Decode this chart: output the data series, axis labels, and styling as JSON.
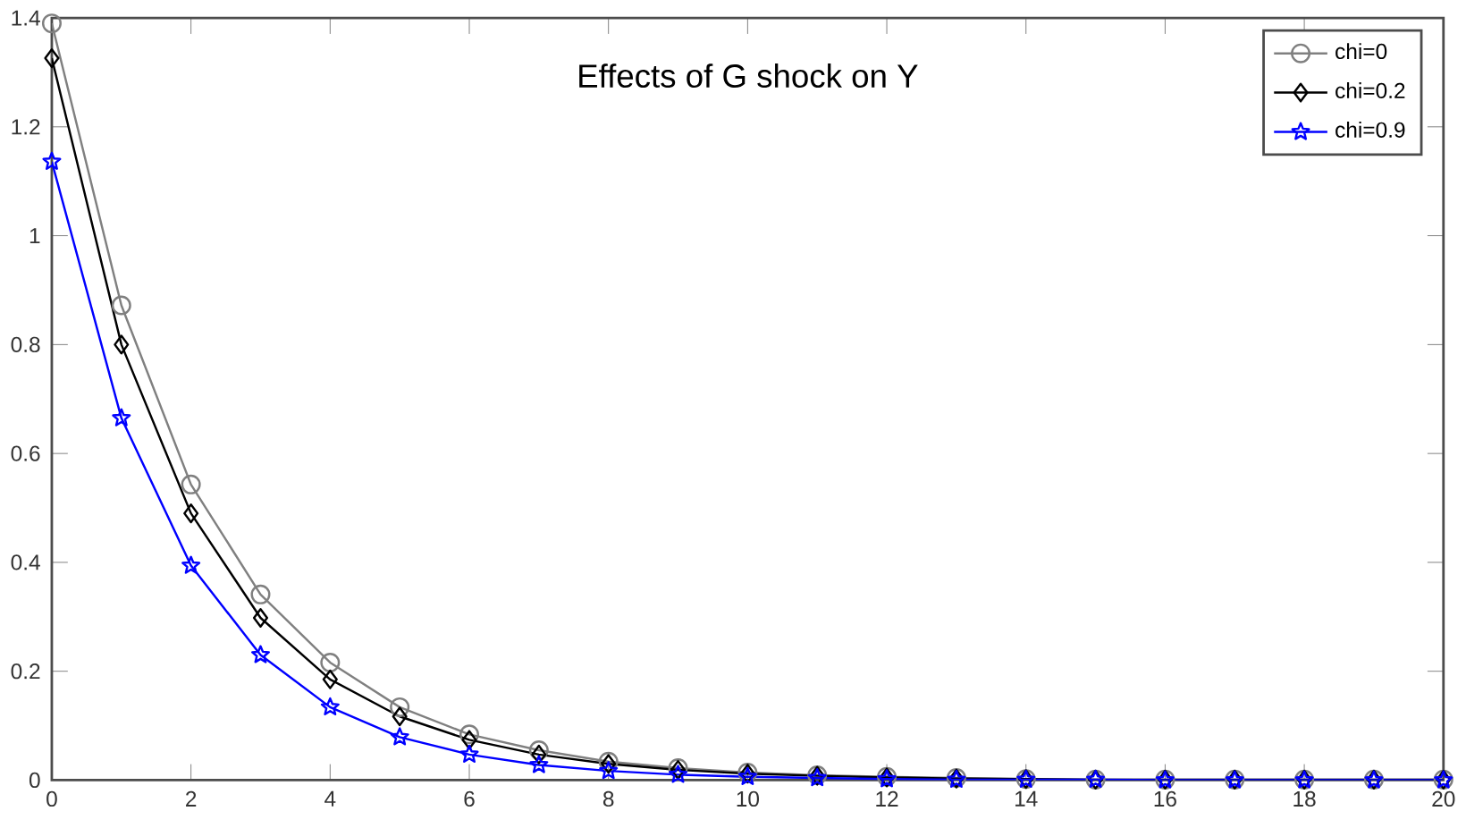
{
  "chart_data": {
    "type": "line",
    "title": "Effects of G shock on Y",
    "x": [
      0,
      1,
      2,
      3,
      4,
      5,
      6,
      7,
      8,
      9,
      10,
      11,
      12,
      13,
      14,
      15,
      16,
      17,
      18,
      19,
      20
    ],
    "series": [
      {
        "name": "chi=0",
        "color": "#808080",
        "marker": "circle",
        "values": [
          1.39,
          0.872,
          0.543,
          0.341,
          0.216,
          0.134,
          0.084,
          0.055,
          0.034,
          0.022,
          0.014,
          0.009,
          0.006,
          0.004,
          0.002,
          0.001,
          0.001,
          0.001,
          0.001,
          0.001,
          0.001
        ]
      },
      {
        "name": "chi=0.2",
        "color": "#000000",
        "marker": "diamond",
        "values": [
          1.326,
          0.8,
          0.49,
          0.298,
          0.185,
          0.117,
          0.074,
          0.047,
          0.03,
          0.019,
          0.012,
          0.008,
          0.005,
          0.003,
          0.002,
          0.001,
          0.001,
          0.001,
          0.001,
          0.001,
          0.001
        ]
      },
      {
        "name": "chi=0.9",
        "color": "#0000ff",
        "marker": "star",
        "values": [
          1.136,
          0.665,
          0.394,
          0.23,
          0.134,
          0.079,
          0.047,
          0.028,
          0.017,
          0.01,
          0.006,
          0.004,
          0.002,
          0.001,
          0.001,
          0.001,
          0,
          0,
          0,
          0,
          0
        ]
      }
    ],
    "xlim": [
      0,
      20
    ],
    "xticks": [
      0,
      2,
      4,
      6,
      8,
      10,
      12,
      14,
      16,
      18,
      20
    ],
    "ylim": [
      0,
      1.4
    ],
    "yticks": [
      0,
      0.2,
      0.4,
      0.6,
      0.8,
      1,
      1.2,
      1.4
    ],
    "legend": "top right",
    "line_style": "solid",
    "grid": false
  }
}
